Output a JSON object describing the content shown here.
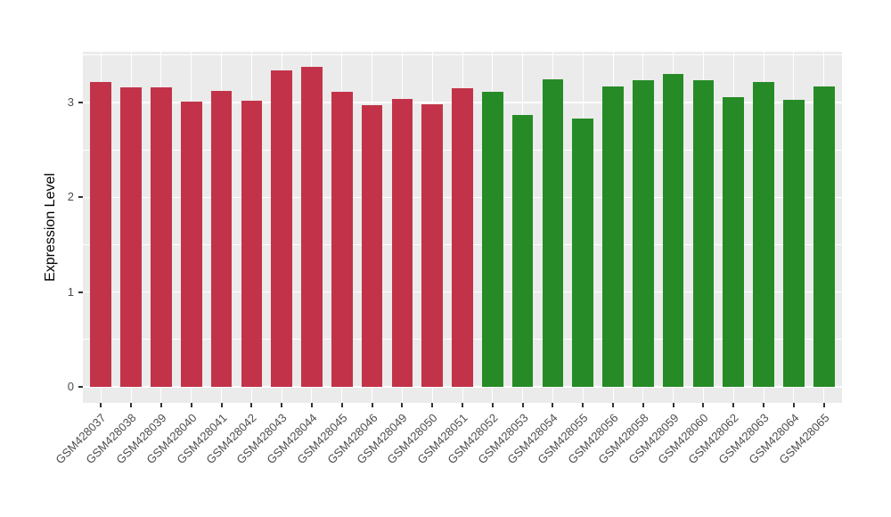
{
  "chart_data": {
    "type": "bar",
    "title": "",
    "xlabel": "",
    "ylabel": "Expression Level",
    "ylim": [
      0,
      3.55
    ],
    "yticks": [
      0,
      1,
      2,
      3
    ],
    "yminor": [
      0.5,
      1.5,
      2.5,
      3.5
    ],
    "grid": "on",
    "legend": "none",
    "panel_background": "#EBEBEB",
    "grid_color": "#FFFFFF",
    "tick_color": "#333333",
    "axis_text_color": "#4D4D4D",
    "group_colors": {
      "groupA": "#C23349",
      "groupB": "#268B26"
    },
    "categories": [
      "GSM428037",
      "GSM428038",
      "GSM428039",
      "GSM428040",
      "GSM428041",
      "GSM428042",
      "GSM428043",
      "GSM428044",
      "GSM428045",
      "GSM428046",
      "GSM428049",
      "GSM428050",
      "GSM428051",
      "GSM428052",
      "GSM428053",
      "GSM428054",
      "GSM428055",
      "GSM428056",
      "GSM428058",
      "GSM428059",
      "GSM428060",
      "GSM428062",
      "GSM428063",
      "GSM428064",
      "GSM428065"
    ],
    "values": [
      3.22,
      3.16,
      3.16,
      3.01,
      3.12,
      3.02,
      3.34,
      3.38,
      3.11,
      2.97,
      3.04,
      2.98,
      3.15,
      3.11,
      2.87,
      3.25,
      2.83,
      3.17,
      3.24,
      3.3,
      3.24,
      3.06,
      3.22,
      3.03,
      3.17
    ],
    "groups": [
      "groupA",
      "groupA",
      "groupA",
      "groupA",
      "groupA",
      "groupA",
      "groupA",
      "groupA",
      "groupA",
      "groupA",
      "groupA",
      "groupA",
      "groupA",
      "groupB",
      "groupB",
      "groupB",
      "groupB",
      "groupB",
      "groupB",
      "groupB",
      "groupB",
      "groupB",
      "groupB",
      "groupB",
      "groupB"
    ]
  }
}
